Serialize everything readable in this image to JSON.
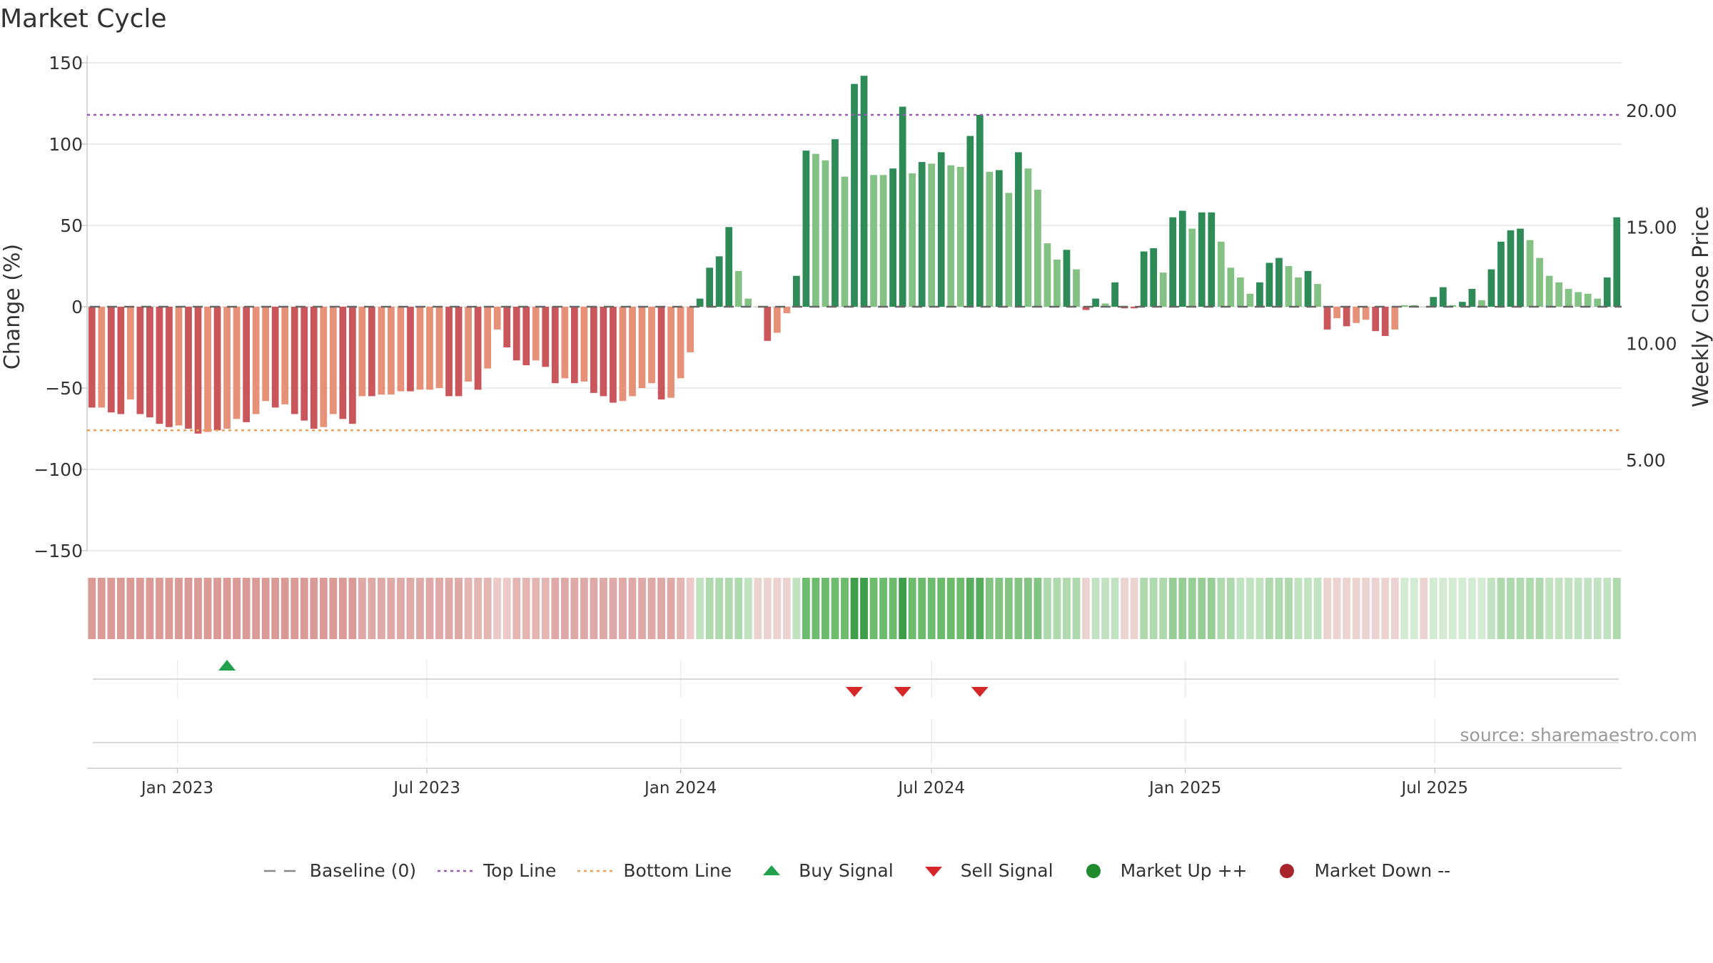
{
  "chart_data": {
    "type": "bar",
    "title": "Market Cycle",
    "source": "source: sharemaestro.com",
    "ylabel": "Change (%)",
    "y2label": "Weekly Close Price",
    "ylim": [
      -150,
      150
    ],
    "y2lim": [
      5.0,
      20.0
    ],
    "yticks": [
      "150",
      "100",
      "50",
      "0",
      "−50",
      "−100",
      "−150"
    ],
    "y2ticks": [
      "20.00",
      "15.00",
      "10.00",
      "5.00"
    ],
    "x_start": "2022-10-31",
    "x_step_days": 7,
    "xticks": [
      {
        "label": "Jan 2023",
        "date": "2023-01-01"
      },
      {
        "label": "Jul 2023",
        "date": "2023-07-01"
      },
      {
        "label": "Jan 2024",
        "date": "2024-01-01"
      },
      {
        "label": "Jul 2024",
        "date": "2024-07-01"
      },
      {
        "label": "Jan 2025",
        "date": "2025-01-01"
      },
      {
        "label": "Jul 2025",
        "date": "2025-07-01"
      }
    ],
    "top_line": 118,
    "bottom_line": -76,
    "series": [
      {
        "values": [
          -62,
          -62,
          -65,
          -66,
          -57,
          -66,
          -68,
          -72,
          -74,
          -73,
          -75,
          -78,
          -77,
          -76,
          -75,
          -69,
          -71,
          -66,
          -58,
          -62,
          -60,
          -66,
          -70,
          -75,
          -74,
          -66,
          -69,
          -72,
          -55,
          -55,
          -54,
          -54,
          -52,
          -52,
          -51,
          -51,
          -50,
          -55,
          -55,
          -46,
          -51,
          -38,
          -14,
          -25,
          -33,
          -36,
          -33,
          -37,
          -47,
          -44,
          -47,
          -46,
          -53,
          -55,
          -59,
          -58,
          -55,
          -50,
          -47,
          -57,
          -56,
          -44,
          -28,
          5,
          24,
          31,
          49,
          22,
          5,
          0,
          -21,
          -16,
          -4,
          19,
          96,
          94,
          90,
          103,
          80,
          137,
          142,
          81,
          81,
          85,
          123,
          82,
          89,
          88,
          95,
          87,
          86,
          105,
          118,
          83,
          84,
          70,
          95,
          85,
          72,
          39,
          29,
          35,
          23,
          -2,
          5,
          2,
          15,
          -1,
          -1,
          34,
          36,
          21,
          55,
          59,
          48,
          58,
          58,
          40,
          24,
          18,
          8,
          15,
          27,
          30,
          25,
          18,
          22,
          14,
          -14,
          -7,
          -12,
          -10,
          -8,
          -15,
          -18,
          -14,
          1,
          1,
          0,
          6,
          12,
          1,
          3,
          11,
          4,
          23,
          40,
          47,
          48,
          41,
          30,
          19,
          15,
          11,
          9,
          8,
          5,
          18,
          55
        ],
        "colors": [
          "#c9565a",
          "#e69178",
          "#c9565a",
          "#c9565a",
          "#e69178",
          "#c9565a",
          "#c9565a",
          "#c9565a",
          "#c9565a",
          "#e69178",
          "#c9565a",
          "#c9565a",
          "#e69178",
          "#c9565a",
          "#e69178",
          "#e69178",
          "#c9565a",
          "#e69178",
          "#e69178",
          "#c9565a",
          "#e69178",
          "#c9565a",
          "#c9565a",
          "#c9565a",
          "#e69178",
          "#e69178",
          "#c9565a",
          "#c9565a",
          "#e69178",
          "#c9565a",
          "#e69178",
          "#e69178",
          "#e69178",
          "#c9565a",
          "#e69178",
          "#e69178",
          "#e69178",
          "#c9565a",
          "#c9565a",
          "#e69178",
          "#c9565a",
          "#e69178",
          "#e69178",
          "#c9565a",
          "#c9565a",
          "#c9565a",
          "#e69178",
          "#c9565a",
          "#c9565a",
          "#e69178",
          "#c9565a",
          "#e69178",
          "#c9565a",
          "#c9565a",
          "#c9565a",
          "#e69178",
          "#e69178",
          "#e69178",
          "#e69178",
          "#c9565a",
          "#e69178",
          "#e69178",
          "#e69178",
          "#2e8b57",
          "#2e8b57",
          "#2e8b57",
          "#2e8b57",
          "#84c184",
          "#84c184",
          "#84c184",
          "#c9565a",
          "#e69178",
          "#e69178",
          "#2e8b57",
          "#2e8b57",
          "#84c184",
          "#84c184",
          "#2e8b57",
          "#84c184",
          "#2e8b57",
          "#2e8b57",
          "#84c184",
          "#84c184",
          "#2e8b57",
          "#2e8b57",
          "#84c184",
          "#2e8b57",
          "#84c184",
          "#2e8b57",
          "#84c184",
          "#84c184",
          "#2e8b57",
          "#2e8b57",
          "#84c184",
          "#2e8b57",
          "#84c184",
          "#2e8b57",
          "#84c184",
          "#84c184",
          "#84c184",
          "#84c184",
          "#2e8b57",
          "#84c184",
          "#c9565a",
          "#2e8b57",
          "#84c184",
          "#2e8b57",
          "#c9565a",
          "#c9565a",
          "#2e8b57",
          "#2e8b57",
          "#84c184",
          "#2e8b57",
          "#2e8b57",
          "#84c184",
          "#2e8b57",
          "#2e8b57",
          "#84c184",
          "#84c184",
          "#84c184",
          "#84c184",
          "#2e8b57",
          "#2e8b57",
          "#2e8b57",
          "#84c184",
          "#84c184",
          "#2e8b57",
          "#84c184",
          "#c9565a",
          "#e69178",
          "#c9565a",
          "#e69178",
          "#e69178",
          "#c9565a",
          "#c9565a",
          "#e69178",
          "#84c184",
          "#84c184",
          "#84c184",
          "#2e8b57",
          "#2e8b57",
          "#84c184",
          "#2e8b57",
          "#2e8b57",
          "#84c184",
          "#2e8b57",
          "#2e8b57",
          "#2e8b57",
          "#2e8b57",
          "#84c184",
          "#84c184",
          "#84c184",
          "#84c184",
          "#84c184",
          "#84c184",
          "#84c184",
          "#84c184",
          "#2e8b57",
          "#2e8b57"
        ]
      }
    ],
    "heat_strip": {
      "colors": [
        "#d99a98",
        "#d99a98",
        "#d99a98",
        "#d99a98",
        "#d99a98",
        "#d99a98",
        "#d99a98",
        "#d99a98",
        "#d99a98",
        "#d99a98",
        "#d99a98",
        "#d99a98",
        "#d99a98",
        "#d99a98",
        "#d99a98",
        "#d99a98",
        "#d99a98",
        "#d99a98",
        "#d99a98",
        "#d99a98",
        "#d99a98",
        "#d99a98",
        "#d99a98",
        "#d99a98",
        "#d99a98",
        "#d99a98",
        "#d99a98",
        "#d99a98",
        "#dea9a7",
        "#dea9a7",
        "#dea9a7",
        "#dea9a7",
        "#dea9a7",
        "#dea9a7",
        "#dea9a7",
        "#dea9a7",
        "#dea9a7",
        "#dea9a7",
        "#dea9a7",
        "#e3b6b4",
        "#e3b6b4",
        "#e3b6b4",
        "#ebcac9",
        "#ebcac9",
        "#e3b6b4",
        "#e3b6b4",
        "#e3b6b4",
        "#e3b6b4",
        "#dea9a7",
        "#dea9a7",
        "#dea9a7",
        "#dea9a7",
        "#dea9a7",
        "#dea9a7",
        "#dea9a7",
        "#dea9a7",
        "#dea9a7",
        "#dea9a7",
        "#dea9a7",
        "#dea9a7",
        "#dea9a7",
        "#e3b6b4",
        "#ebcac9",
        "#c2e3c2",
        "#aedaae",
        "#aedaae",
        "#aedaae",
        "#aedaae",
        "#c2e3c2",
        "#ebd3d2",
        "#ebd3d2",
        "#ebd3d2",
        "#ebd3d2",
        "#c2e3c2",
        "#6dbb6d",
        "#6dbb6d",
        "#6dbb6d",
        "#6dbb6d",
        "#6dbb6d",
        "#3f9e4a",
        "#3f9e4a",
        "#6dbb6d",
        "#6dbb6d",
        "#6dbb6d",
        "#3f9e4a",
        "#6dbb6d",
        "#6dbb6d",
        "#6dbb6d",
        "#6dbb6d",
        "#6dbb6d",
        "#6dbb6d",
        "#58ac5e",
        "#58ac5e",
        "#83c383",
        "#83c383",
        "#83c383",
        "#83c383",
        "#83c383",
        "#83c383",
        "#aedaae",
        "#aedaae",
        "#aedaae",
        "#aedaae",
        "#ebd3d2",
        "#c2e3c2",
        "#c2e3c2",
        "#c2e3c2",
        "#ebd3d2",
        "#ebd3d2",
        "#aedaae",
        "#aedaae",
        "#aedaae",
        "#96ce96",
        "#96ce96",
        "#96ce96",
        "#96ce96",
        "#96ce96",
        "#aedaae",
        "#aedaae",
        "#c2e3c2",
        "#c2e3c2",
        "#c2e3c2",
        "#aedaae",
        "#aedaae",
        "#aedaae",
        "#c2e3c2",
        "#c2e3c2",
        "#c2e3c2",
        "#ebd3d2",
        "#ebd3d2",
        "#ebd3d2",
        "#ebd3d2",
        "#ebd3d2",
        "#ebd3d2",
        "#ebd3d2",
        "#ebd3d2",
        "#d3ebd3",
        "#d3ebd3",
        "#ebd3d2",
        "#d3ebd3",
        "#d3ebd3",
        "#d3ebd3",
        "#d3ebd3",
        "#d3ebd3",
        "#d3ebd3",
        "#c2e3c2",
        "#aedaae",
        "#aedaae",
        "#aedaae",
        "#aedaae",
        "#aedaae",
        "#c2e3c2",
        "#c2e3c2",
        "#c2e3c2",
        "#c2e3c2",
        "#c2e3c2",
        "#c2e3c2",
        "#c2e3c2",
        "#aedaae"
      ]
    },
    "buy_signals": [
      14
    ],
    "sell_signals": [
      79,
      84,
      92
    ],
    "legend": [
      {
        "label": "Baseline (0)",
        "marker": "dash-line",
        "color": "#888888"
      },
      {
        "label": "Top Line",
        "marker": "dotted-line",
        "color": "#9b59b6"
      },
      {
        "label": "Bottom Line",
        "marker": "dotted-line",
        "color": "#e8a25a"
      },
      {
        "label": "Buy Signal",
        "marker": "triangle-up",
        "color": "#22a04b"
      },
      {
        "label": "Sell Signal",
        "marker": "triangle-down",
        "color": "#d62728"
      },
      {
        "label": "Market Up ++",
        "marker": "circle",
        "color": "#1f8a2e"
      },
      {
        "label": "Market Down --",
        "marker": "circle",
        "color": "#a8262b"
      }
    ]
  }
}
